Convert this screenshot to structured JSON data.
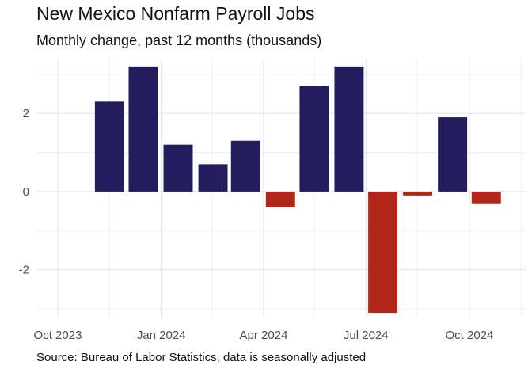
{
  "chart_data": {
    "type": "bar",
    "title": "New Mexico Nonfarm Payroll Jobs",
    "subtitle": "Monthly change, past 12 months (thousands)",
    "caption": "Source: Bureau of Labor Statistics, data is seasonally adjusted",
    "xlabel": "",
    "ylabel": "",
    "x": [
      "2023-11",
      "2023-12",
      "2024-01",
      "2024-02",
      "2024-03",
      "2024-04",
      "2024-05",
      "2024-06",
      "2024-07",
      "2024-08",
      "2024-09",
      "2024-10"
    ],
    "values": [
      2.3,
      3.2,
      1.2,
      0.7,
      1.3,
      -0.4,
      2.7,
      3.2,
      -3.1,
      -0.1,
      1.9,
      -0.3
    ],
    "ylim": [
      -3.2,
      3.4
    ],
    "y_ticks": [
      {
        "value": -2,
        "label": "-2"
      },
      {
        "value": 0,
        "label": "0"
      },
      {
        "value": 2,
        "label": "2"
      }
    ],
    "x_ticks": [
      {
        "date": "2023-10-01",
        "label": "Oct 2023"
      },
      {
        "date": "2024-01-01",
        "label": "Jan 2024"
      },
      {
        "date": "2024-04-01",
        "label": "Apr 2024"
      },
      {
        "date": "2024-07-01",
        "label": "Jul 2024"
      },
      {
        "date": "2024-10-01",
        "label": "Oct 2024"
      }
    ],
    "x_range": [
      "2023-09-12",
      "2024-11-20"
    ],
    "colors": {
      "positive": "#231d5e",
      "negative": "#b0271a",
      "grid_major": "#e3e3e3",
      "grid_minor": "#f1f1f1"
    },
    "grid": true,
    "legend": "none"
  }
}
